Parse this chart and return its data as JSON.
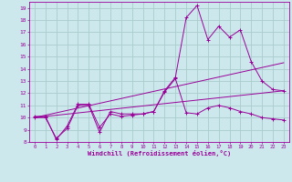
{
  "background_color": "#cce8ec",
  "grid_color": "#aacccc",
  "line_color": "#990099",
  "xlabel": "Windchill (Refroidissement éolien,°C)",
  "xlim": [
    -0.5,
    23.5
  ],
  "ylim": [
    8,
    19.5
  ],
  "yticks": [
    8,
    9,
    10,
    11,
    12,
    13,
    14,
    15,
    16,
    17,
    18,
    19
  ],
  "xticks": [
    0,
    1,
    2,
    3,
    4,
    5,
    6,
    7,
    8,
    9,
    10,
    11,
    12,
    13,
    14,
    15,
    16,
    17,
    18,
    19,
    20,
    21,
    22,
    23
  ],
  "series1_x": [
    0,
    1,
    2,
    3,
    4,
    5,
    6,
    7,
    8,
    9,
    10,
    11,
    12,
    13,
    14,
    15,
    16,
    17,
    18,
    19,
    20,
    21,
    22,
    23
  ],
  "series1_y": [
    10.1,
    10.1,
    8.2,
    9.3,
    11.1,
    11.1,
    9.2,
    10.3,
    10.1,
    10.2,
    10.3,
    10.5,
    12.2,
    13.3,
    18.2,
    19.2,
    16.4,
    17.5,
    16.6,
    17.2,
    14.6,
    13.0,
    12.3,
    12.2
  ],
  "series2_x": [
    0,
    1,
    2,
    3,
    4,
    5,
    6,
    7,
    8,
    9,
    10,
    11,
    12,
    13,
    14,
    15,
    16,
    17,
    18,
    19,
    20,
    21,
    22,
    23
  ],
  "series2_y": [
    10.0,
    10.0,
    8.3,
    9.1,
    11.0,
    11.0,
    8.8,
    10.5,
    10.3,
    10.3,
    10.3,
    10.5,
    12.1,
    13.2,
    10.4,
    10.3,
    10.8,
    11.0,
    10.8,
    10.5,
    10.3,
    10.0,
    9.9,
    9.8
  ],
  "series3_x": [
    0,
    23
  ],
  "series3_y": [
    10.0,
    12.2
  ],
  "series4_x": [
    0,
    23
  ],
  "series4_y": [
    10.0,
    14.5
  ]
}
